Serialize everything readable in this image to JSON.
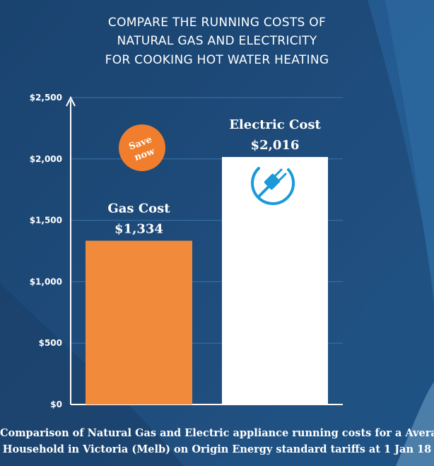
{
  "title_lines": [
    "COMPARE THE RUNNING COSTS OF",
    "NATURAL GAS AND ELECTRICITY",
    "FOR COOKING  HOT WATER  HEATING"
  ],
  "footer_lines": [
    "Comparison of Natural Gas and Electric appliance running costs for a Average",
    "Household in Victoria (Melb) on Origin Energy standard tariffs at 1 Jan 18"
  ],
  "badge": {
    "line1": "Save",
    "line2": "now"
  },
  "colors": {
    "gas": "#f28a3c",
    "electric": "#ffffff",
    "badge": "#f07e2c",
    "plug_icon": "#1a9ad8",
    "gridline": "#3a73a6",
    "text": "#ffffff"
  },
  "icons": {
    "electric_bar": "plug-icon"
  },
  "chart_data": {
    "type": "bar",
    "categories": [
      "Gas Cost",
      "Electric Cost"
    ],
    "values": [
      1334,
      2016
    ],
    "value_labels": [
      "$1,334",
      "$2,016"
    ],
    "ylim": [
      0,
      2500
    ],
    "yticks": [
      0,
      500,
      1000,
      1500,
      2000,
      2500
    ],
    "ytick_labels": [
      "$0",
      "$500",
      "$1,000",
      "$1,500",
      "$2,000",
      "$2,500"
    ],
    "grid": true
  }
}
